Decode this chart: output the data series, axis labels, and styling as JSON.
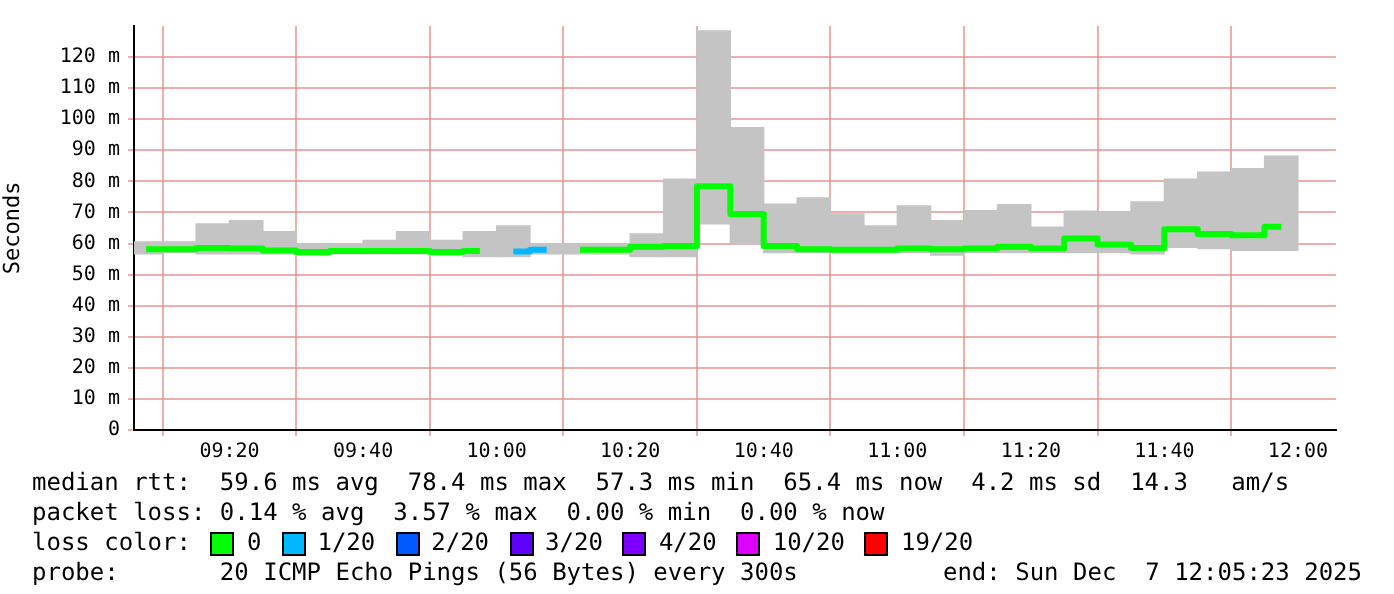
{
  "chart_data": {
    "type": "step",
    "ylabel": "Seconds",
    "xlim": [
      9.095,
      12.095
    ],
    "ylim": [
      0,
      130
    ],
    "xticks": [
      {
        "value": 9.3333,
        "label": "09:20"
      },
      {
        "value": 9.6667,
        "label": "09:40"
      },
      {
        "value": 10,
        "label": "10:00"
      },
      {
        "value": 10.3333,
        "label": "10:20"
      },
      {
        "value": 10.6667,
        "label": "10:40"
      },
      {
        "value": 11,
        "label": "11:00"
      },
      {
        "value": 11.3333,
        "label": "11:20"
      },
      {
        "value": 11.6667,
        "label": "11:40"
      },
      {
        "value": 12,
        "label": "12:00"
      }
    ],
    "yticks": [
      0,
      {
        "value": 10,
        "label": "10 m"
      },
      {
        "value": 20,
        "label": "20 m"
      },
      {
        "value": 30,
        "label": "30 m"
      },
      {
        "value": 40,
        "label": "40 m"
      },
      {
        "value": 50,
        "label": "50 m"
      },
      {
        "value": 60,
        "label": "60 m"
      },
      {
        "value": 70,
        "label": "70 m"
      },
      {
        "value": 80,
        "label": "80 m"
      },
      {
        "value": 90,
        "label": "90 m"
      },
      {
        "value": 100,
        "label": "100 m"
      },
      {
        "value": 110,
        "label": "110 m"
      },
      {
        "value": 120,
        "label": "120 m"
      }
    ],
    "grid": true,
    "legend": "bottom",
    "legend_title": "loss color:",
    "x": [
      9.125,
      9.2083,
      9.2917,
      9.375,
      9.4583,
      9.5417,
      9.625,
      9.7083,
      9.7917,
      9.875,
      9.9583,
      10.0417,
      10.125,
      10.2083,
      10.2917,
      10.375,
      10.4583,
      10.5417,
      10.625,
      10.7083,
      10.7917,
      10.875,
      10.9583,
      11.0417,
      11.125,
      11.2083,
      11.2917,
      11.375,
      11.4583,
      11.5417,
      11.625,
      11.7083,
      11.7917,
      11.875,
      11.9583
    ],
    "series": [
      {
        "type": "bar",
        "color": "#c4c4c4",
        "base": [
          56.7,
          57.1,
          56.7,
          56.7,
          56.7,
          56.3,
          56.7,
          56.7,
          56.7,
          56.3,
          55.8,
          55.8,
          56.7,
          56.7,
          56.7,
          55.8,
          55.8,
          66.3,
          59.9,
          57.1,
          57.1,
          57.1,
          57.1,
          57.1,
          56.3,
          57.1,
          57.1,
          57.1,
          57.1,
          57.1,
          56.7,
          58.8,
          58.4,
          57.8,
          57.8
        ],
        "values": [
          3.8,
          3.4,
          9.6,
          10.7,
          7.1,
          3.6,
          3.2,
          4.3,
          7.1,
          4.7,
          8,
          9.9,
          3.2,
          3.2,
          3.2,
          7.3,
          24.9,
          62.1,
          37.4,
          15.6,
          17.6,
          12.4,
          8.6,
          15,
          11.1,
          13.5,
          15.4,
          8.2,
          13.3,
          12.9,
          16.7,
          21.9,
          24.6,
          26.3,
          30.3
        ]
      },
      {
        "name": "0",
        "color": "#00ff00",
        "values": [
          58.2,
          58.2,
          58.6,
          58.4,
          57.8,
          57.3,
          57.6,
          57.6,
          57.6,
          57.3,
          57.6,
          null,
          null,
          58,
          58,
          59,
          59.2,
          78.4,
          69.5,
          59.2,
          58.2,
          58,
          58,
          58.4,
          58.2,
          58.4,
          59,
          58.4,
          61.6,
          59.7,
          58.6,
          64.6,
          63.1,
          62.7,
          65.4
        ]
      },
      {
        "name": "1/20",
        "color": "#00b8ff",
        "values": [
          null,
          null,
          null,
          null,
          null,
          null,
          null,
          null,
          null,
          null,
          null,
          57.4,
          58,
          null,
          null,
          null,
          null,
          null,
          null,
          null,
          null,
          null,
          null,
          null,
          null,
          null,
          null,
          null,
          null,
          null,
          null,
          null,
          null,
          null,
          null
        ]
      },
      {
        "name": "2/20",
        "color": "#0059ff",
        "values": [
          null,
          null,
          null,
          null,
          null,
          null,
          null,
          null,
          null,
          null,
          null,
          null,
          null,
          null,
          null,
          null,
          null,
          null,
          null,
          null,
          null,
          null,
          null,
          null,
          null,
          null,
          null,
          null,
          null,
          null,
          null,
          null,
          null,
          null,
          null
        ]
      },
      {
        "name": "3/20",
        "color": "#5e00ff",
        "values": [
          null,
          null,
          null,
          null,
          null,
          null,
          null,
          null,
          null,
          null,
          null,
          null,
          null,
          null,
          null,
          null,
          null,
          null,
          null,
          null,
          null,
          null,
          null,
          null,
          null,
          null,
          null,
          null,
          null,
          null,
          null,
          null,
          null,
          null,
          null
        ]
      },
      {
        "name": "4/20",
        "color": "#7e00ff",
        "values": [
          null,
          null,
          null,
          null,
          null,
          null,
          null,
          null,
          null,
          null,
          null,
          null,
          null,
          null,
          null,
          null,
          null,
          null,
          null,
          null,
          null,
          null,
          null,
          null,
          null,
          null,
          null,
          null,
          null,
          null,
          null,
          null,
          null,
          null,
          null
        ]
      },
      {
        "name": "10/20",
        "color": "#dd00ff",
        "values": [
          null,
          null,
          null,
          null,
          null,
          null,
          null,
          null,
          null,
          null,
          null,
          null,
          null,
          null,
          null,
          null,
          null,
          null,
          null,
          null,
          null,
          null,
          null,
          null,
          null,
          null,
          null,
          null,
          null,
          null,
          null,
          null,
          null,
          null,
          null
        ]
      },
      {
        "name": "19/20",
        "color": "#ff0000",
        "values": [
          null,
          null,
          null,
          null,
          null,
          null,
          null,
          null,
          null,
          null,
          null,
          null,
          null,
          null,
          null,
          null,
          null,
          null,
          null,
          null,
          null,
          null,
          null,
          null,
          null,
          null,
          null,
          null,
          null,
          null,
          null,
          null,
          null,
          null,
          null
        ]
      }
    ],
    "annotations": [
      "median rtt:  59.6 ms avg  78.4 ms max  57.3 ms min  65.4 ms now  4.2 ms sd  14.3   am/s",
      "packet loss: 0.14 % avg  3.57 % max  0.00 % min  0.00 % now",
      "probe:       20 ICMP Echo Pings (56 Bytes) every 300s",
      "end: Sun Dec  7 12:05:23 2025"
    ]
  }
}
